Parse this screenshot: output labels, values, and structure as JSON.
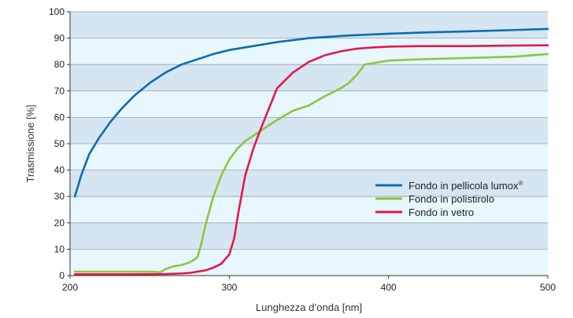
{
  "chart_data": {
    "type": "line",
    "title": "",
    "xlabel": "Lunghezza d’onda [nm]",
    "ylabel": "Trasmissione [%]",
    "xlim": [
      200,
      500
    ],
    "ylim": [
      0,
      100
    ],
    "x_ticks": [
      200,
      300,
      400,
      500
    ],
    "y_ticks": [
      0,
      10,
      20,
      30,
      40,
      50,
      60,
      70,
      80,
      90,
      100
    ],
    "grid": true,
    "band_colors": [
      "#e8f6fd",
      "#d6e5f2"
    ],
    "legend_position": "center-right",
    "series": [
      {
        "name": "Fondo in pellicola lumox",
        "name_suffix": "®",
        "color": "#0a6db0",
        "x": [
          203,
          207,
          212,
          218,
          225,
          232,
          240,
          250,
          260,
          270,
          280,
          290,
          300,
          315,
          330,
          350,
          375,
          400,
          425,
          450,
          475,
          500
        ],
        "y": [
          30,
          38,
          46,
          52,
          58,
          63,
          68,
          73,
          77,
          80,
          82,
          84,
          85.5,
          87,
          88.5,
          90,
          91,
          91.7,
          92.2,
          92.6,
          93,
          93.5
        ]
      },
      {
        "name": "Fondo in polistirolo",
        "color": "#8cc63f",
        "x": [
          203,
          230,
          250,
          257,
          260,
          265,
          270,
          275,
          278,
          280,
          282,
          285,
          290,
          295,
          300,
          305,
          310,
          315,
          320,
          330,
          340,
          350,
          360,
          370,
          375,
          380,
          385,
          390,
          400,
          420,
          450,
          480,
          500
        ],
        "y": [
          1.5,
          1.5,
          1.5,
          1.3,
          2.5,
          3.5,
          4,
          5,
          6,
          7,
          11,
          19,
          30,
          38,
          44,
          48,
          51,
          53,
          55,
          59,
          62.5,
          64.5,
          68,
          71,
          73,
          76,
          80,
          80.5,
          81.5,
          82,
          82.5,
          83,
          84
        ]
      },
      {
        "name": "Fondo in vetro",
        "color": "#e2194b",
        "x": [
          203,
          240,
          260,
          270,
          275,
          280,
          285,
          290,
          295,
          300,
          303,
          306,
          310,
          315,
          320,
          330,
          340,
          350,
          360,
          370,
          380,
          390,
          400,
          420,
          450,
          480,
          500
        ],
        "y": [
          0.5,
          0.5,
          0.6,
          0.8,
          1,
          1.5,
          2,
          3,
          4.5,
          8,
          14,
          25,
          38,
          48,
          56,
          71,
          77,
          81,
          83.5,
          85,
          86,
          86.5,
          86.8,
          87,
          87,
          87.2,
          87.3
        ]
      }
    ]
  }
}
